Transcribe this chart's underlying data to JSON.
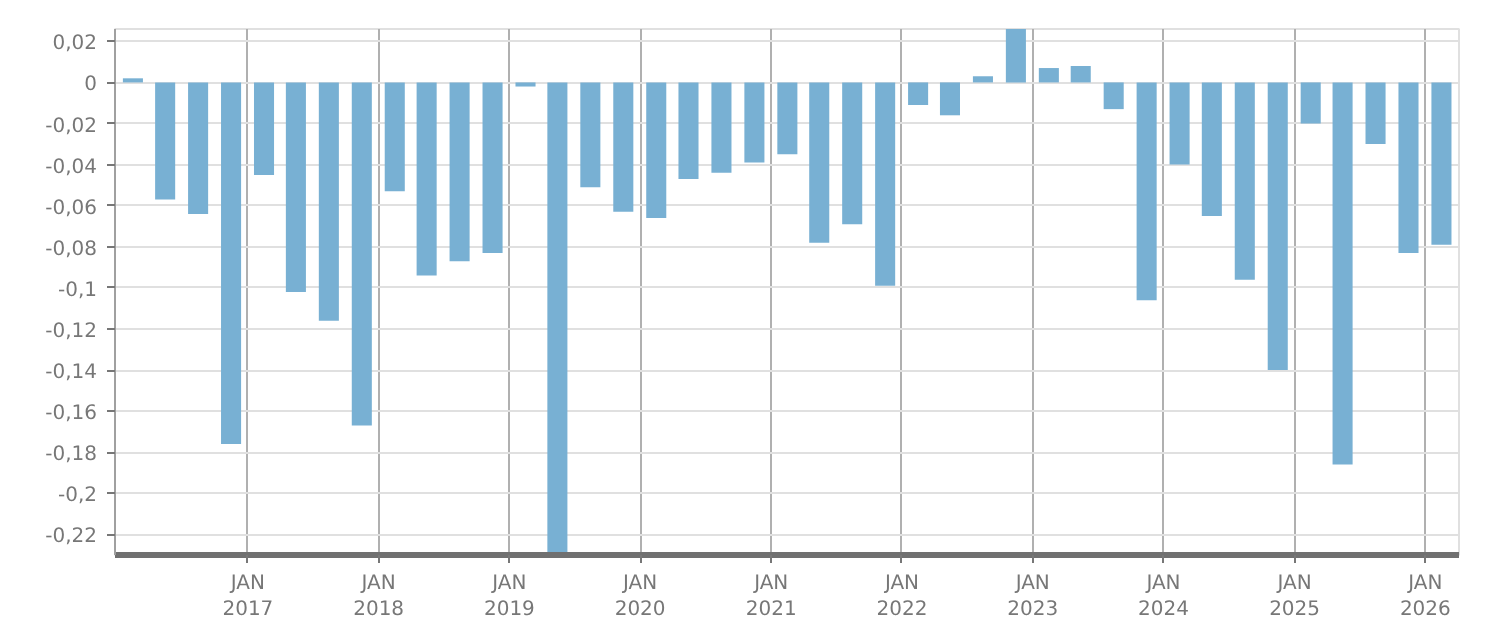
{
  "chart_data": {
    "type": "bar",
    "color": "#78b0d3",
    "x": [
      "2016-02-15",
      "2016-05-15",
      "2016-08-15",
      "2016-11-15",
      "2017-02-15",
      "2017-05-15",
      "2017-08-15",
      "2017-11-15",
      "2018-02-15",
      "2018-05-15",
      "2018-08-15",
      "2018-11-15",
      "2019-02-15",
      "2019-05-15",
      "2019-08-15",
      "2019-11-15",
      "2020-02-15",
      "2020-05-15",
      "2020-08-15",
      "2020-11-15",
      "2021-02-15",
      "2021-05-15",
      "2021-08-15",
      "2021-11-15",
      "2022-02-15",
      "2022-05-15",
      "2022-08-15",
      "2022-11-15",
      "2023-02-15",
      "2023-05-15",
      "2023-08-15",
      "2023-11-15",
      "2024-02-15",
      "2024-05-15",
      "2024-08-15",
      "2024-11-15",
      "2025-02-15",
      "2025-05-15",
      "2025-08-15",
      "2025-11-15",
      "2026-02-15"
    ],
    "values": [
      0.002,
      -0.057,
      -0.064,
      -0.176,
      -0.045,
      -0.102,
      -0.116,
      -0.167,
      -0.053,
      -0.094,
      -0.087,
      -0.083,
      -0.002,
      -0.23,
      -0.051,
      -0.063,
      -0.066,
      -0.047,
      -0.044,
      -0.039,
      -0.035,
      -0.078,
      -0.069,
      -0.099,
      -0.011,
      -0.016,
      0.003,
      0.026,
      0.007,
      0.008,
      -0.013,
      -0.106,
      -0.04,
      -0.065,
      -0.096,
      -0.14,
      -0.02,
      -0.186,
      -0.03,
      -0.083,
      -0.079
    ],
    "xlim": [
      "2015-12-27",
      "2026-04-05"
    ],
    "xticks": [
      {
        "value": "2017-01-01",
        "label": "JAN\n2017"
      },
      {
        "value": "2018-01-01",
        "label": "JAN\n2018"
      },
      {
        "value": "2019-01-01",
        "label": "JAN\n2019"
      },
      {
        "value": "2020-01-01",
        "label": "JAN\n2020"
      },
      {
        "value": "2021-01-01",
        "label": "JAN\n2021"
      },
      {
        "value": "2022-01-01",
        "label": "JAN\n2022"
      },
      {
        "value": "2023-01-01",
        "label": "JAN\n2023"
      },
      {
        "value": "2024-01-01",
        "label": "JAN\n2024"
      },
      {
        "value": "2025-01-01",
        "label": "JAN\n2025"
      },
      {
        "value": "2026-01-01",
        "label": "JAN\n2026"
      }
    ],
    "ylim": [
      -0.23,
      0.026
    ],
    "yticks": [
      {
        "value": 0.02,
        "label": "0,02"
      },
      0,
      {
        "value": -0.02,
        "label": "-0,02"
      },
      {
        "value": -0.04,
        "label": "-0,04"
      },
      {
        "value": -0.06,
        "label": "-0,06"
      },
      {
        "value": -0.08,
        "label": "-0,08"
      },
      {
        "value": -0.1,
        "label": "-0,1"
      },
      {
        "value": -0.12,
        "label": "-0,12"
      },
      {
        "value": -0.14,
        "label": "-0,14"
      },
      {
        "value": -0.16,
        "label": "-0,16"
      },
      {
        "value": -0.18,
        "label": "-0,18"
      },
      {
        "value": -0.2,
        "label": "-0,2"
      },
      {
        "value": -0.22,
        "label": "-0,22"
      }
    ],
    "grid": true
  }
}
